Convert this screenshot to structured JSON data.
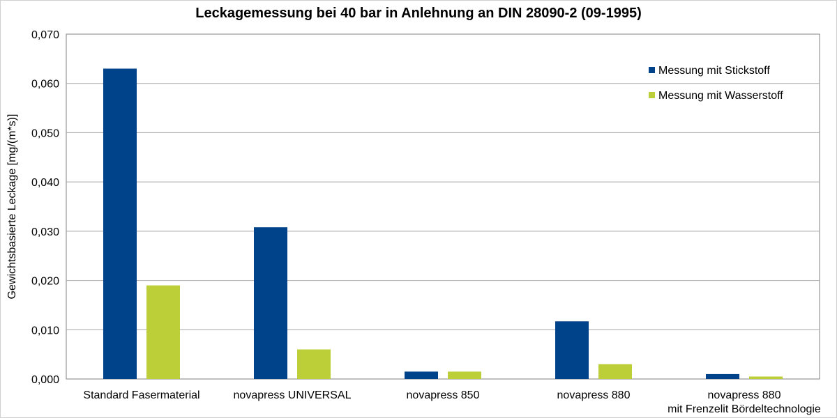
{
  "chart_data": {
    "type": "bar",
    "title": "Leckagemessung bei 40 bar in Anlehnung an DIN 28090-2 (09-1995)",
    "xlabel": "",
    "ylabel": "Gewichtsbasierte Leckage [mg/(m*s)]",
    "ylim": [
      0,
      0.07
    ],
    "yticks": [
      "0,000",
      "0,010",
      "0,020",
      "0,030",
      "0,040",
      "0,050",
      "0,060",
      "0,070"
    ],
    "grid": true,
    "legend_position": "top-right",
    "categories": [
      [
        "Standard Fasermaterial"
      ],
      [
        "novapress UNIVERSAL"
      ],
      [
        "novapress 850"
      ],
      [
        "novapress 880"
      ],
      [
        "novapress 880",
        "mit Frenzelit Bördeltechnologie"
      ]
    ],
    "series": [
      {
        "name": "Messung mit Stickstoff",
        "color": "#00438a",
        "values": [
          0.063,
          0.0308,
          0.0015,
          0.0117,
          0.001
        ]
      },
      {
        "name": "Messung mit Wasserstoff",
        "color": "#bccf38",
        "values": [
          0.019,
          0.006,
          0.0015,
          0.003,
          0.0005
        ]
      }
    ]
  }
}
